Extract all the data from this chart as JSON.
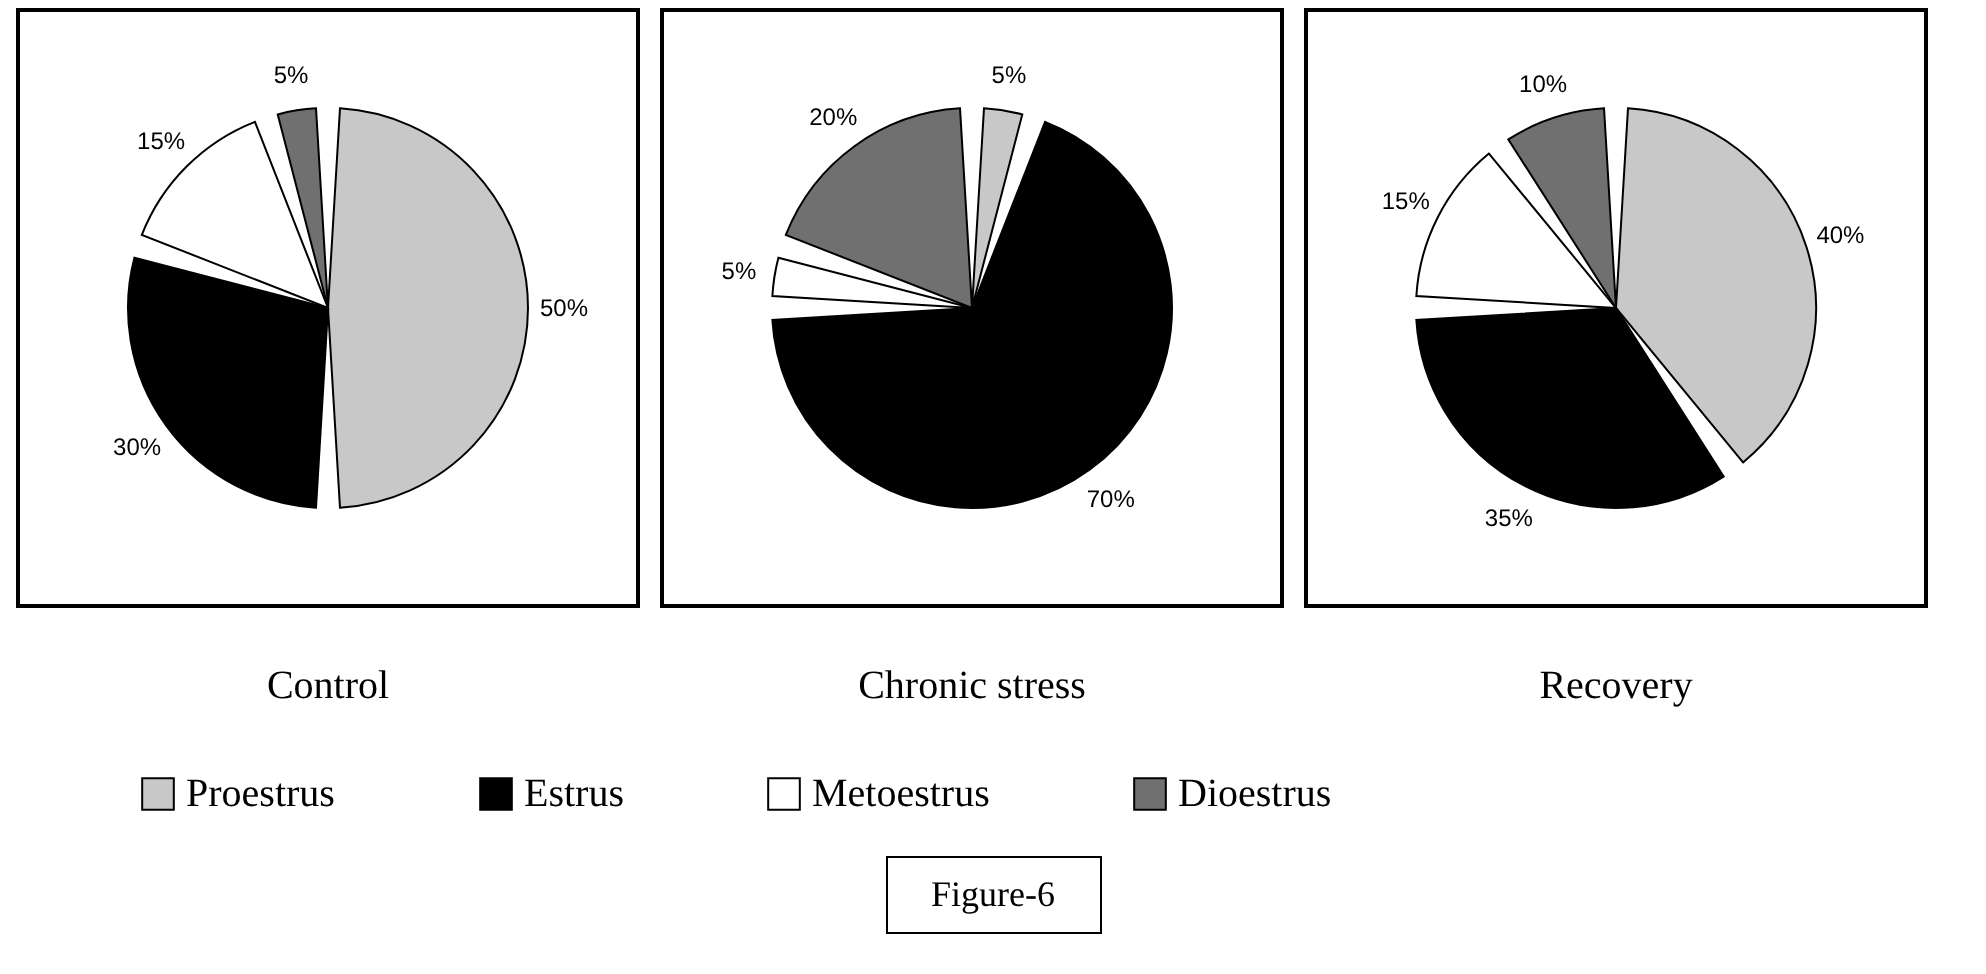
{
  "chart_data": [
    {
      "type": "pie",
      "title": "Control",
      "categories": [
        "Proestrus",
        "Estrus",
        "Metoestrus",
        "Dioestrus"
      ],
      "values": [
        50,
        30,
        15,
        5
      ],
      "value_labels": [
        "50%",
        "30%",
        "15%",
        "5%"
      ],
      "colors": [
        "#c8c8c8",
        "#000000",
        "#ffffff",
        "#707070"
      ],
      "legend": "bottom"
    },
    {
      "type": "pie",
      "title": "Chronic stress",
      "categories": [
        null,
        null,
        null,
        null
      ],
      "values": [
        5,
        70,
        5,
        20
      ],
      "value_labels": [
        "5%",
        "70%",
        "5%",
        "20%"
      ],
      "colors": [
        "#c8c8c8",
        "#000000",
        "#ffffff",
        "#707070"
      ],
      "annotations": [
        "Figure-6"
      ]
    },
    {
      "type": "pie",
      "title": "Recovery",
      "categories": [
        null,
        null,
        null,
        null
      ],
      "values": [
        40,
        35,
        15,
        10
      ],
      "value_labels": [
        "40%",
        "35%",
        "15%",
        "10%"
      ],
      "colors": [
        "#c8c8c8",
        "#000000",
        "#ffffff",
        "#707070"
      ]
    }
  ]
}
